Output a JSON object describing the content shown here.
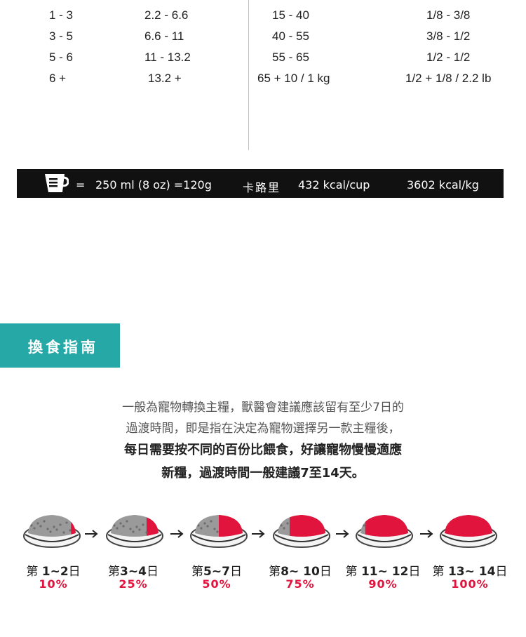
{
  "feeding_table": {
    "rows": [
      {
        "kg": "1 - 3",
        "lb": "2.2 - 6.6",
        "grams": "15 - 40",
        "cups": "1/8 - 3/8"
      },
      {
        "kg": "3 - 5",
        "lb": "6.6 - 11",
        "grams": "40 - 55",
        "cups": "3/8 - 1/2"
      },
      {
        "kg": "5 - 6",
        "lb": "11 - 13.2",
        "grams": "55 - 65",
        "cups": "1/2 - 1/2"
      },
      {
        "kg": "6 +",
        "lb": "13.2 +",
        "grams": "65 + 10 / 1 kg",
        "cups": "1/2 + 1/8 / 2.2 lb"
      }
    ]
  },
  "cup_bar": {
    "equals": "=",
    "cup_measure": "250 ml (8 oz) =120g",
    "calorie_label": "卡路里",
    "kcal_cup": "432 kcal/cup",
    "kcal_kg": "3602 kcal/kg",
    "icon": "measuring-cup-icon"
  },
  "transition": {
    "title": "換食指南",
    "accent_color": "#26a9a6",
    "intro_line1": "一般為寵物轉換主糧，獸醫會建議應該留有至少7日的",
    "intro_line2": "過渡時間，即是指在決定為寵物選擇另一款主糧後，",
    "bold_line1": "每日需要按不同的百份比餵食，好讓寵物慢慢適應",
    "bold_line2": "新糧，過渡時間一般建議7至14天。",
    "stages": [
      {
        "prefix": "第 ",
        "days": "1~2",
        "suffix": "日",
        "percent": "10%",
        "fraction": 0.1
      },
      {
        "prefix": "第",
        "days": "3~4",
        "suffix": "日",
        "percent": "25%",
        "fraction": 0.25
      },
      {
        "prefix": "第",
        "days": "5~7",
        "suffix": "日",
        "percent": "50%",
        "fraction": 0.5
      },
      {
        "prefix": "第",
        "days": "8~ 10",
        "suffix": "日",
        "percent": "75%",
        "fraction": 0.75
      },
      {
        "prefix": "第 ",
        "days": "11~ 12",
        "suffix": "日",
        "percent": "90%",
        "fraction": 0.9
      },
      {
        "prefix": "第 ",
        "days": "13~ 14",
        "suffix": "日",
        "percent": "100%",
        "fraction": 1.0
      }
    ],
    "new_food_color": "#e0143c",
    "old_food_color": "#9a9a9a"
  }
}
